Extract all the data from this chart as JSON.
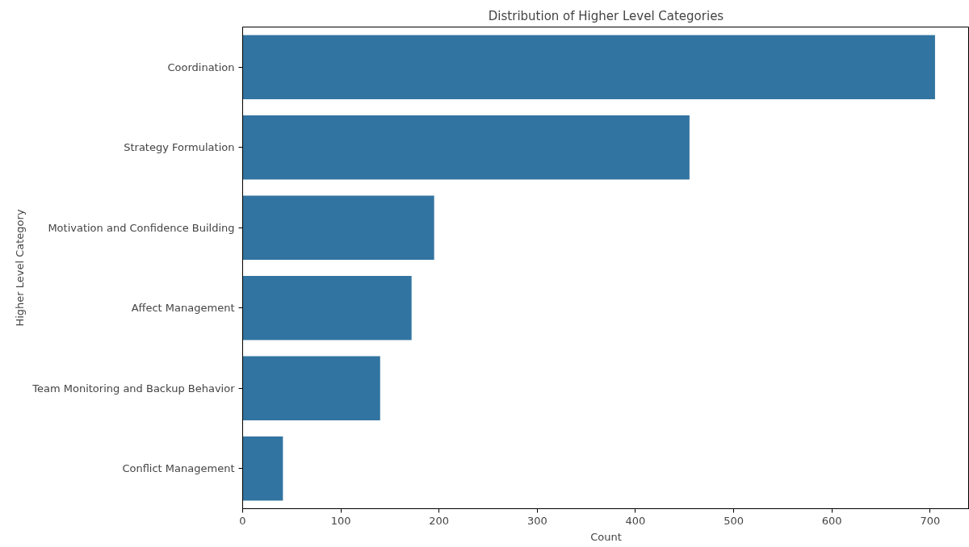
{
  "chart_data": {
    "type": "bar",
    "orientation": "horizontal",
    "title": "Distribution of Higher Level Categories",
    "xlabel": "Count",
    "ylabel": "Higher Level Category",
    "categories": [
      "Coordination",
      "Strategy Formulation",
      "Motivation and Confidence Building",
      "Affect Management",
      "Team Monitoring and Backup Behavior",
      "Conflict Management"
    ],
    "values": [
      705,
      455,
      195,
      172,
      140,
      41
    ],
    "color": "#3274a1",
    "xlim": [
      0,
      740
    ],
    "xticks": [
      0,
      100,
      200,
      300,
      400,
      500,
      600,
      700
    ],
    "grid": false
  }
}
